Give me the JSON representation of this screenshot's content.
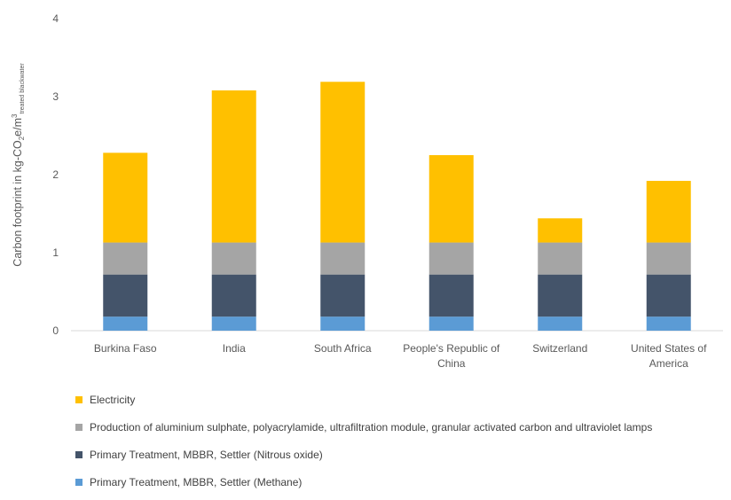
{
  "chart_data": {
    "type": "bar",
    "stacked": true,
    "categories": [
      [
        "Burkina Faso"
      ],
      [
        "India"
      ],
      [
        "South Africa"
      ],
      [
        "People's Republic of",
        "China"
      ],
      [
        "Switzerland"
      ],
      [
        "United States of",
        "America"
      ]
    ],
    "ylim": [
      0,
      4
    ],
    "yticks": [
      0,
      1,
      2,
      3,
      4
    ],
    "grid": false,
    "legend_position": "bottom",
    "ylabel_parts": {
      "main": "Carbon footprint in kg-CO",
      "sub1": "2",
      "mid": "e/m",
      "sup": "3",
      "sub2": "treated blackwater"
    },
    "series": [
      {
        "name": "Primary Treatment, MBBR, Settler (Methane)",
        "color": "#5b9bd5",
        "values": [
          0.18,
          0.18,
          0.18,
          0.18,
          0.18,
          0.18
        ]
      },
      {
        "name": "Primary Treatment, MBBR, Settler (Nitrous oxide)",
        "color": "#44546a",
        "values": [
          0.54,
          0.54,
          0.54,
          0.54,
          0.54,
          0.54
        ]
      },
      {
        "name": "Production of aluminium sulphate, polyacrylamide, ultrafiltration module, granular activated carbon and ultraviolet lamps",
        "color": "#a5a5a5",
        "values": [
          0.41,
          0.41,
          0.41,
          0.41,
          0.41,
          0.41
        ]
      },
      {
        "name": "Electricity",
        "color": "#ffc000",
        "values": [
          1.15,
          1.95,
          2.06,
          1.12,
          0.31,
          0.79
        ]
      }
    ]
  },
  "legend_order": [
    3,
    2,
    1,
    0
  ]
}
